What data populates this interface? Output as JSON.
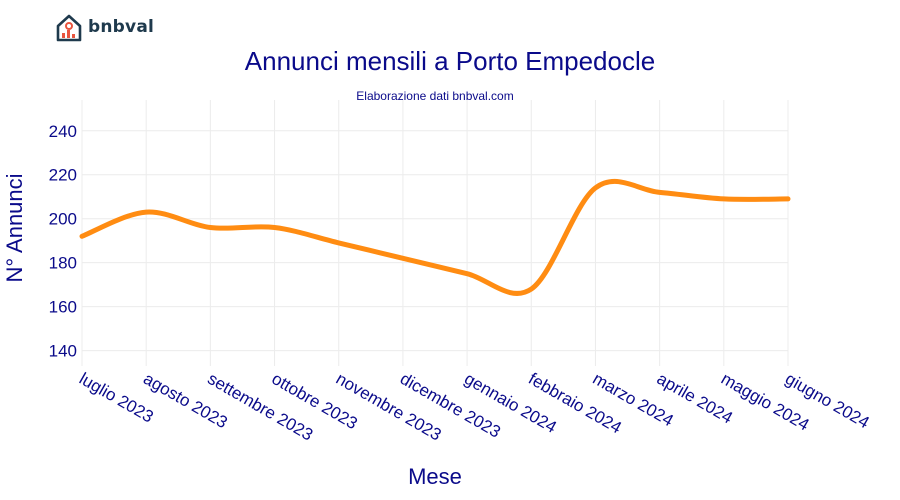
{
  "brand": {
    "name": "bnbval",
    "logo_icon": "house-chart-icon"
  },
  "chart_data": {
    "type": "line",
    "title": "Annunci mensili a Porto Empedocle",
    "subtitle": "Elaborazione dati bnbval.com",
    "xlabel": "Mese",
    "ylabel": "N° Annunci",
    "categories": [
      "luglio 2023",
      "agosto 2023",
      "settembre 2023",
      "ottobre 2023",
      "novembre 2023",
      "dicembre 2023",
      "gennaio 2024",
      "febbraio 2024",
      "marzo 2024",
      "aprile 2024",
      "maggio 2024",
      "giugno 2024"
    ],
    "series": [
      {
        "values": [
          192,
          203,
          196,
          196,
          189,
          182,
          175,
          168,
          214,
          212,
          209,
          209
        ],
        "color": "#ff8c12"
      }
    ],
    "ylim": [
      133,
      254
    ],
    "yticks": [
      140,
      160,
      180,
      200,
      220,
      240
    ],
    "grid": true,
    "colors": {
      "title": "#0a0a8a",
      "axis_text": "#0a0a8a",
      "grid": "#ececec",
      "line": "#ff8c12"
    }
  }
}
